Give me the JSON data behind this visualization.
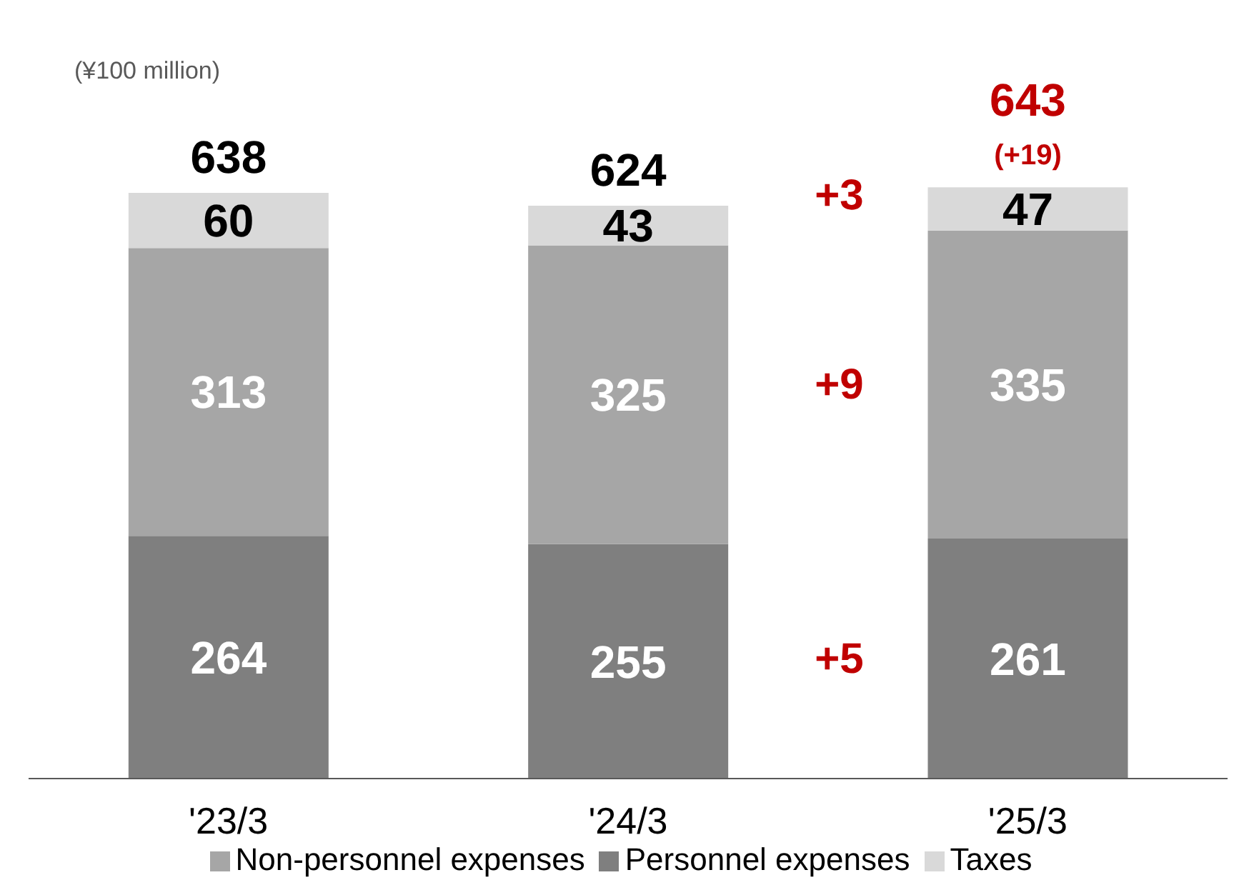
{
  "chart_data": {
    "type": "bar",
    "stacked": true,
    "ylabel": "(¥100 million)",
    "categories": [
      "'23/3",
      "'24/3",
      "'25/3"
    ],
    "series": [
      {
        "name": "Personnel expenses",
        "color": "#7f7f7f",
        "values": [
          264,
          255,
          261
        ]
      },
      {
        "name": "Non-personnel expenses",
        "color": "#a6a6a6",
        "values": [
          313,
          325,
          335
        ]
      },
      {
        "name": "Taxes",
        "color": "#d9d9d9",
        "values": [
          60,
          43,
          47
        ]
      }
    ],
    "data_labels": true,
    "totals": [
      "638",
      "624",
      "643"
    ],
    "annotations": [
      "(+19)",
      "+3",
      "+9",
      "+5"
    ],
    "legend": "bottom"
  }
}
